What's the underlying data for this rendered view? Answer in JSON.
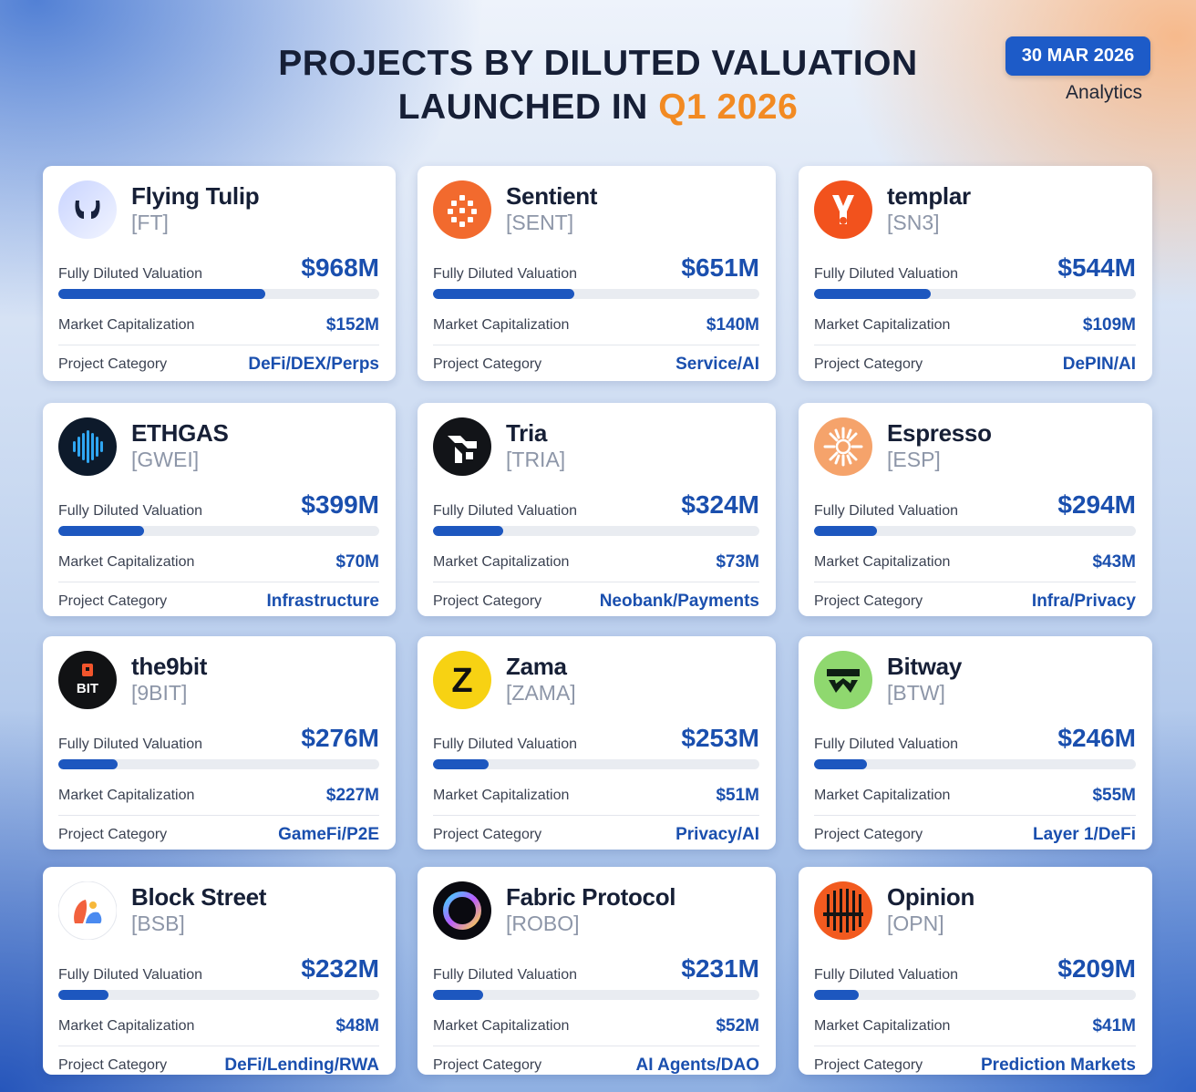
{
  "header": {
    "title_line1": "PROJECTS BY DILUTED VALUATION",
    "title_line2_prefix": "LAUNCHED IN",
    "title_line2_accent": "Q1 2026",
    "date": "30 MAR 2026",
    "tag": "Analytics"
  },
  "labels": {
    "fdv": "Fully Diluted Valuation",
    "mc": "Market Capitalization",
    "category": "Project Category"
  },
  "colors": {
    "accent": "#f28a22",
    "brand_blue": "#1d57bf",
    "title": "#161f36"
  },
  "scale_max_fdv_musd": 1500,
  "projects": [
    {
      "name": "Flying Tulip",
      "ticker": "[FT]",
      "fdv": "$968M",
      "fdv_musd": 968,
      "mc": "$152M",
      "category": "DeFi/DEX/Perps",
      "icon": "flying-tulip-logo-icon"
    },
    {
      "name": "Sentient",
      "ticker": "[SENT]",
      "fdv": "$651M",
      "fdv_musd": 651,
      "mc": "$140M",
      "category": "Service/AI",
      "icon": "sentient-logo-icon"
    },
    {
      "name": "templar",
      "ticker": "[SN3]",
      "fdv": "$544M",
      "fdv_musd": 544,
      "mc": "$109M",
      "category": "DePIN/AI",
      "icon": "templar-logo-icon"
    },
    {
      "name": "ETHGAS",
      "ticker": "[GWEI]",
      "fdv": "$399M",
      "fdv_musd": 399,
      "mc": "$70M",
      "category": "Infrastructure",
      "icon": "ethgas-logo-icon"
    },
    {
      "name": "Tria",
      "ticker": "[TRIA]",
      "fdv": "$324M",
      "fdv_musd": 324,
      "mc": "$73M",
      "category": "Neobank/Payments",
      "icon": "tria-logo-icon"
    },
    {
      "name": "Espresso",
      "ticker": "[ESP]",
      "fdv": "$294M",
      "fdv_musd": 294,
      "mc": "$43M",
      "category": "Infra/Privacy",
      "icon": "espresso-logo-icon"
    },
    {
      "name": "the9bit",
      "ticker": "[9BIT]",
      "fdv": "$276M",
      "fdv_musd": 276,
      "mc": "$227M",
      "category": "GameFi/P2E",
      "icon": "the9bit-logo-icon",
      "logo_text": "BIT"
    },
    {
      "name": "Zama",
      "ticker": "[ZAMA]",
      "fdv": "$253M",
      "fdv_musd": 253,
      "mc": "$51M",
      "category": "Privacy/AI",
      "icon": "zama-logo-icon",
      "logo_text": "Z"
    },
    {
      "name": "Bitway",
      "ticker": "[BTW]",
      "fdv": "$246M",
      "fdv_musd": 246,
      "mc": "$55M",
      "category": "Layer 1/DeFi",
      "icon": "bitway-logo-icon"
    },
    {
      "name": "Block Street",
      "ticker": "[BSB]",
      "fdv": "$232M",
      "fdv_musd": 232,
      "mc": "$48M",
      "category": "DeFi/Lending/RWA",
      "icon": "block-street-logo-icon"
    },
    {
      "name": "Fabric Protocol",
      "ticker": "[ROBO]",
      "fdv": "$231M",
      "fdv_musd": 231,
      "mc": "$52M",
      "category": "AI Agents/DAO",
      "icon": "fabric-protocol-logo-icon"
    },
    {
      "name": "Opinion",
      "ticker": "[OPN]",
      "fdv": "$209M",
      "fdv_musd": 209,
      "mc": "$41M",
      "category": "Prediction Markets",
      "icon": "opinion-logo-icon"
    }
  ]
}
